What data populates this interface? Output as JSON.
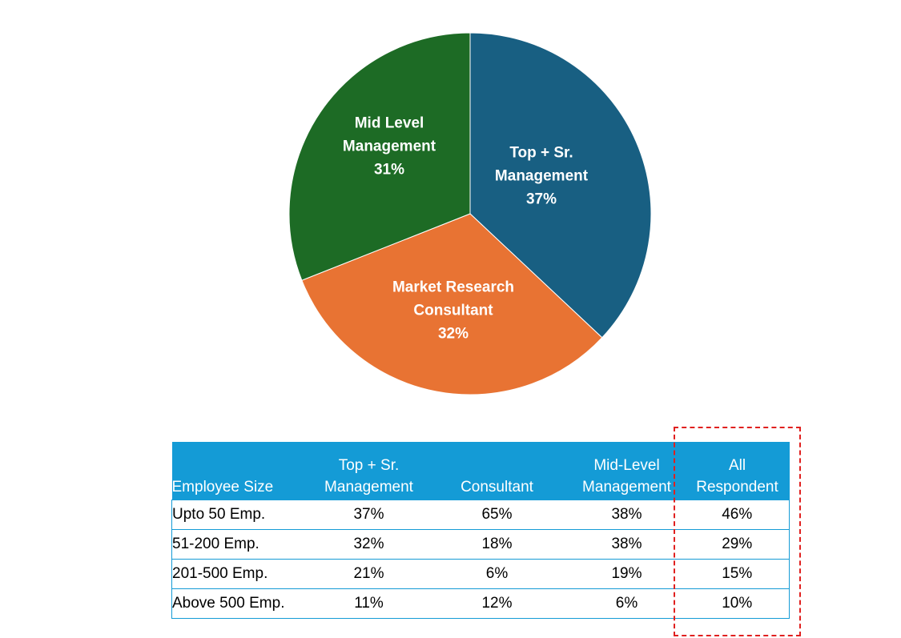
{
  "chart_data": {
    "type": "pie",
    "slices": [
      {
        "label_lines": [
          "Top + Sr.",
          "Management"
        ],
        "value": 37,
        "value_label": "37%",
        "color": "#185f82"
      },
      {
        "label_lines": [
          "Market Research",
          "Consultant"
        ],
        "value": 32,
        "value_label": "32%",
        "color": "#e87333"
      },
      {
        "label_lines": [
          "Mid Level",
          "Management"
        ],
        "value": 31,
        "value_label": "31%",
        "color": "#1d6b25"
      }
    ],
    "start_angle_deg": 0,
    "direction": "clockwise"
  },
  "table": {
    "header_color": "#149bd6",
    "columns": [
      {
        "lines": [
          "",
          "Employee Size"
        ]
      },
      {
        "lines": [
          "Top + Sr.",
          "Management"
        ]
      },
      {
        "lines": [
          "",
          "Consultant"
        ]
      },
      {
        "lines": [
          "Mid-Level",
          "Management"
        ]
      },
      {
        "lines": [
          "All",
          "Respondent"
        ]
      }
    ],
    "rows": [
      [
        "Upto 50 Emp.",
        "37%",
        "65%",
        "38%",
        "46%"
      ],
      [
        "51-200 Emp.",
        "32%",
        "18%",
        "38%",
        "29%"
      ],
      [
        "201-500 Emp.",
        "21%",
        "6%",
        "19%",
        "15%"
      ],
      [
        "Above 500 Emp.",
        "11%",
        "12%",
        "6%",
        "10%"
      ]
    ],
    "highlighted_column": "All Respondent",
    "highlight_color": "#e0201f"
  }
}
